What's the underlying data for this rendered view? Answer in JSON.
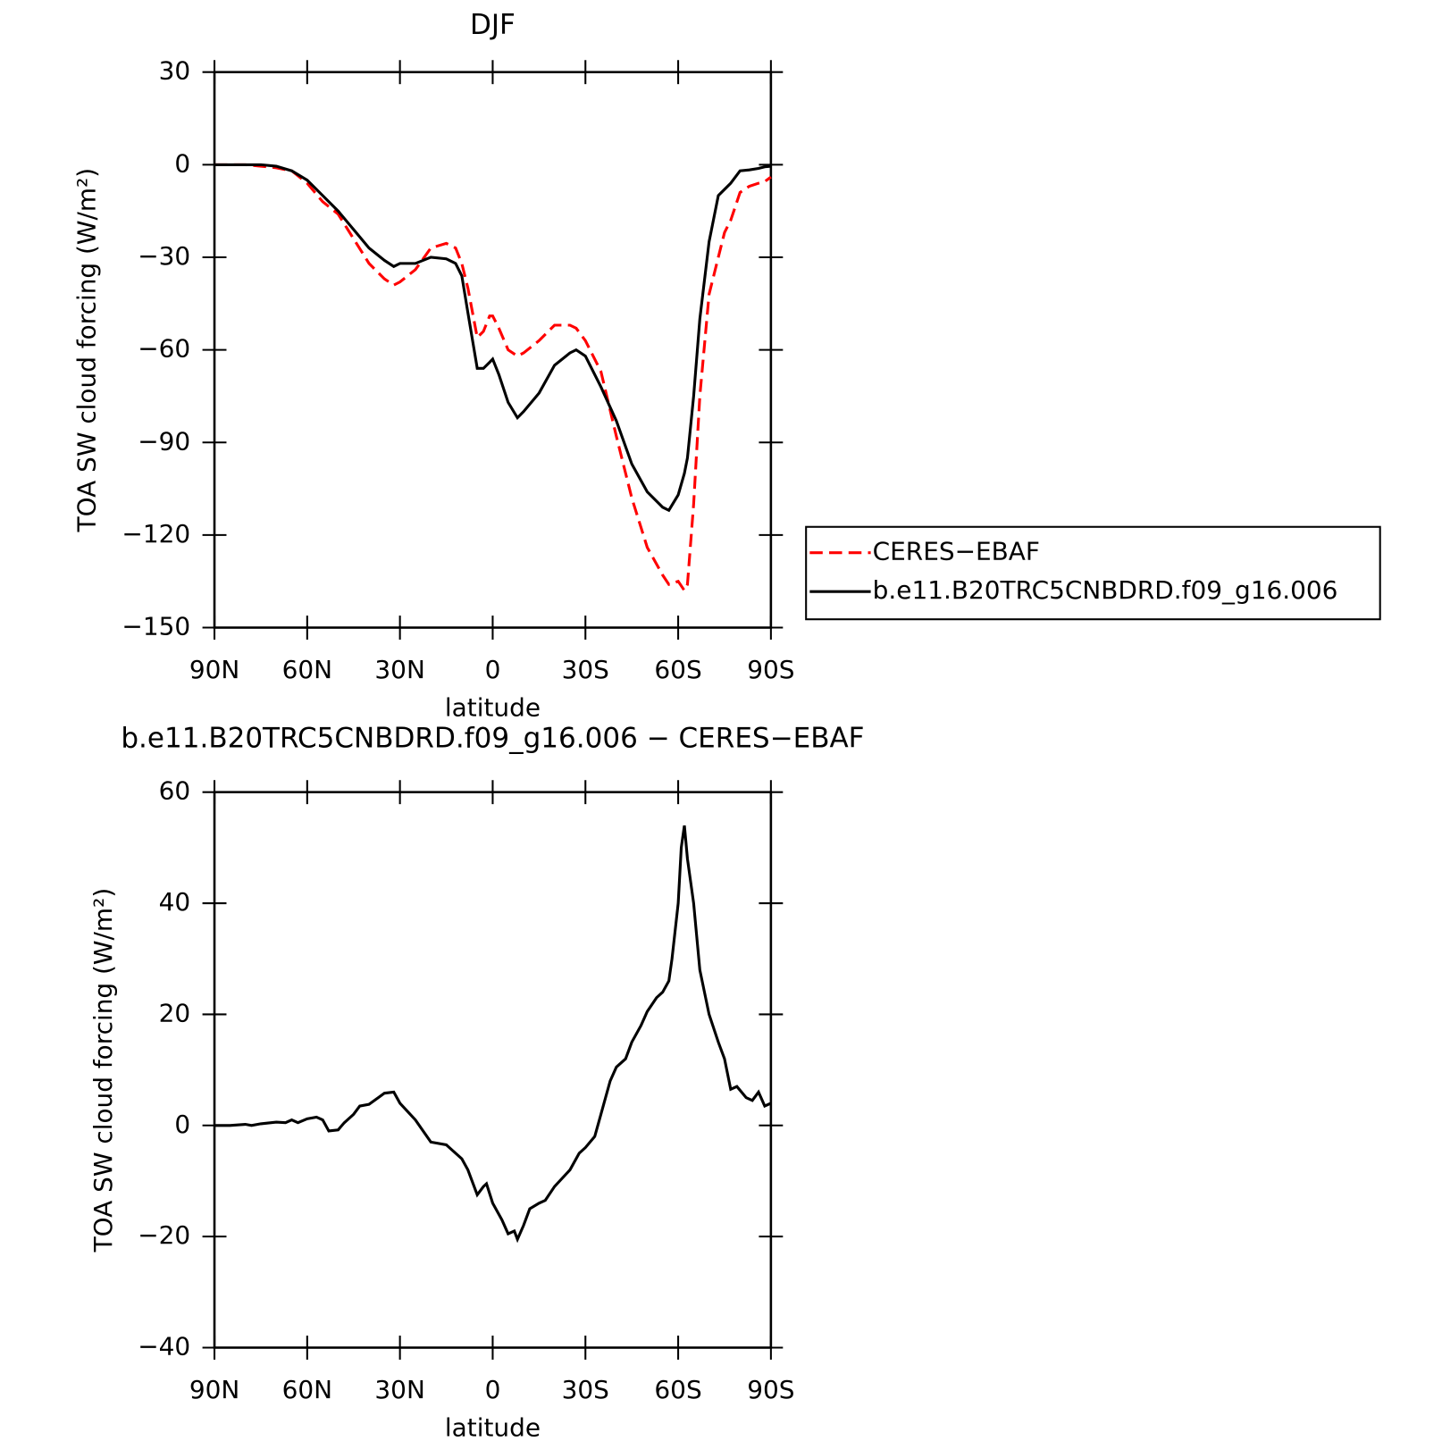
{
  "chart_data": [
    {
      "type": "line",
      "title": "DJF",
      "xlabel": "latitude",
      "ylabel": "TOA SW cloud forcing (W/m²)",
      "x": [
        90,
        85,
        80,
        75,
        70,
        65,
        60,
        55,
        50,
        45,
        40,
        35,
        32,
        30,
        25,
        20,
        15,
        12,
        10,
        8,
        5,
        3,
        1,
        0,
        -2,
        -5,
        -8,
        -10,
        -15,
        -20,
        -25,
        -27,
        -30,
        -35,
        -40,
        -45,
        -50,
        -55,
        -57,
        -60,
        -62,
        -63,
        -65,
        -67,
        -70,
        -73,
        -75,
        -77,
        -80,
        -83,
        -86,
        -88,
        -90
      ],
      "series": [
        {
          "name": "CERES−EBAF",
          "color": "#ff0000",
          "linestyle": "dashed",
          "values": [
            0,
            0,
            0,
            -0.5,
            -1,
            -2,
            -6,
            -12,
            -16,
            -24,
            -32,
            -37,
            -39,
            -38,
            -34,
            -27,
            -25.5,
            -27,
            -32,
            -40,
            -56,
            -54,
            -49,
            -49,
            -53,
            -60,
            -62,
            -61,
            -57,
            -52,
            -52,
            -53,
            -57,
            -67,
            -88,
            -108,
            -124,
            -133,
            -136,
            -135,
            -138,
            -136,
            -110,
            -75,
            -42,
            -30,
            -22,
            -18,
            -9,
            -7,
            -6,
            -5.5,
            -4
          ]
        },
        {
          "name": "b.e11.B20TRC5CNBDRD.f09_g16.006",
          "color": "#000000",
          "linestyle": "solid",
          "values": [
            0,
            0,
            0,
            0,
            -0.5,
            -2,
            -5,
            -10,
            -15,
            -21,
            -27,
            -31,
            -33,
            -32,
            -32,
            -30,
            -30.5,
            -32,
            -36,
            -48,
            -66,
            -66,
            -64,
            -63,
            -68,
            -77,
            -82,
            -80,
            -74,
            -65,
            -61,
            -60,
            -62,
            -72,
            -83,
            -97,
            -106,
            -111,
            -112,
            -107,
            -100,
            -95,
            -75,
            -50,
            -25,
            -10,
            -8,
            -6,
            -2,
            -1.7,
            -1.2,
            -0.7,
            -0.5
          ]
        }
      ],
      "xlim": [
        90,
        -90
      ],
      "xticks": [
        {
          "value": 90,
          "label": "90N"
        },
        {
          "value": 60,
          "label": "60N"
        },
        {
          "value": 30,
          "label": "30N"
        },
        0,
        {
          "value": -30,
          "label": "30S"
        },
        {
          "value": -60,
          "label": "60S"
        },
        {
          "value": -90,
          "label": "90S"
        }
      ],
      "ylim": [
        -150,
        30
      ],
      "yticks": [
        {
          "value": -150,
          "label": "−150"
        },
        {
          "value": -120,
          "label": "−120"
        },
        {
          "value": -90,
          "label": "−90"
        },
        {
          "value": -60,
          "label": "−60"
        },
        {
          "value": -30,
          "label": "−30"
        },
        0,
        30
      ],
      "legend": "outside right"
    },
    {
      "type": "line",
      "title": "b.e11.B20TRC5CNBDRD.f09_g16.006 − CERES−EBAF",
      "xlabel": "latitude",
      "ylabel": "TOA SW cloud forcing (W/m²)",
      "x": [
        90,
        85,
        80,
        78,
        75,
        70,
        67,
        65,
        63,
        60,
        57,
        55,
        53,
        50,
        48,
        45,
        43,
        40,
        37,
        35,
        32,
        30,
        25,
        20,
        15,
        12,
        10,
        8,
        5,
        3,
        2,
        0,
        -3,
        -5,
        -7,
        -8,
        -10,
        -12,
        -15,
        -17,
        -20,
        -25,
        -28,
        -30,
        -33,
        -35,
        -38,
        -40,
        -43,
        -45,
        -48,
        -50,
        -53,
        -55,
        -57,
        -58,
        -60,
        -61,
        -62,
        -63,
        -65,
        -67,
        -70,
        -73,
        -75,
        -77,
        -79,
        -82,
        -84,
        -86,
        -88,
        -90
      ],
      "series": [
        {
          "color": "#000000",
          "linestyle": "solid",
          "values": [
            0,
            0,
            0.2,
            0,
            0.3,
            0.6,
            0.5,
            1,
            0.5,
            1.2,
            1.5,
            1,
            -1,
            -0.8,
            0.5,
            2,
            3.5,
            3.8,
            5,
            5.8,
            6,
            4,
            1,
            -3,
            -3.5,
            -5,
            -6,
            -8,
            -12.5,
            -11,
            -10.5,
            -14,
            -17,
            -19.5,
            -19,
            -20.5,
            -18,
            -15,
            -14,
            -13.5,
            -11,
            -8,
            -5,
            -4,
            -2,
            2,
            8,
            10.5,
            12,
            15,
            18,
            20.5,
            23,
            24,
            26,
            30,
            40,
            50,
            54,
            48,
            40,
            28,
            20,
            15,
            12,
            6.5,
            7,
            5,
            4.5,
            6,
            3.5,
            4
          ]
        }
      ],
      "xlim": [
        90,
        -90
      ],
      "xticks": [
        {
          "value": 90,
          "label": "90N"
        },
        {
          "value": 60,
          "label": "60N"
        },
        {
          "value": 30,
          "label": "30N"
        },
        0,
        {
          "value": -30,
          "label": "30S"
        },
        {
          "value": -60,
          "label": "60S"
        },
        {
          "value": -90,
          "label": "90S"
        }
      ],
      "ylim": [
        -40,
        60
      ],
      "yticks": [
        {
          "value": -40,
          "label": "−40"
        },
        {
          "value": -20,
          "label": "−20"
        },
        0,
        20,
        40,
        60
      ]
    }
  ]
}
